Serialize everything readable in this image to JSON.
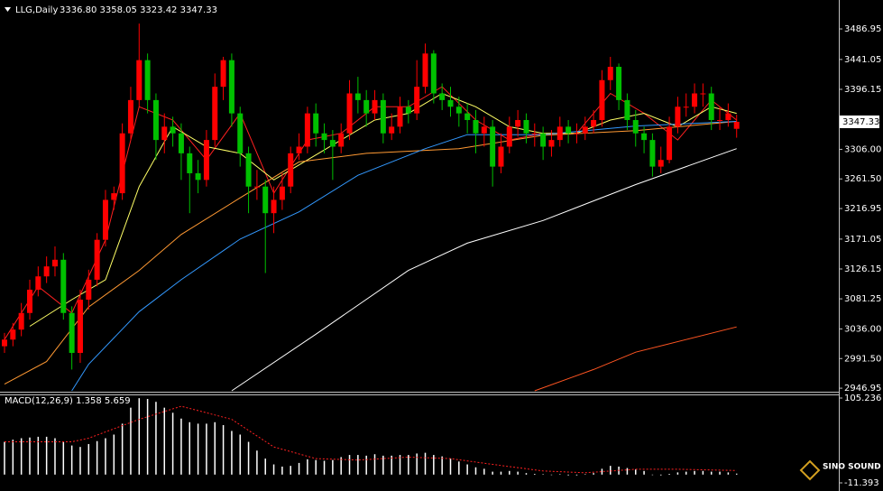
{
  "chart_data": [
    {
      "type": "candlestick",
      "symbol": "LLG,Daily",
      "ohlc_text": "3336.80 3358.05 3323.42 3347.33",
      "bull_color": "#ff0000",
      "bear_color": "#00c000",
      "ylim": [
        2943,
        3525
      ],
      "yticks": [
        3486.95,
        3441.05,
        3396.15,
        {
          "value": 3306.0,
          "label": "3306.00"
        },
        {
          "value": 3261.5,
          "label": "3261.50"
        },
        3216.95,
        3171.05,
        3126.15,
        3081.25,
        {
          "value": 3036.0,
          "label": "3036.00"
        },
        {
          "value": 2991.5,
          "label": "2991.50"
        },
        2946.95
      ],
      "open": [
        3010,
        3020,
        3035,
        3060,
        3095,
        3115,
        3130,
        3140,
        3060,
        3000,
        3080,
        3110,
        3170,
        3230,
        3240,
        3330,
        3380,
        3440,
        3380,
        3320,
        3340,
        3330,
        3300,
        3270,
        3260,
        3320,
        3400,
        3440,
        3360,
        3300,
        3250,
        3250,
        3210,
        3230,
        3250,
        3300,
        3310,
        3360,
        3330,
        3320,
        3310,
        3330,
        3390,
        3380,
        3360,
        3380,
        3330,
        3340,
        3370,
        3360,
        3400,
        3450,
        3390,
        3380,
        3370,
        3360,
        3350,
        3330,
        3340,
        3280,
        3310,
        3340,
        3350,
        3330,
        3330,
        3310,
        3320,
        3340,
        3330,
        3330,
        3340,
        3350,
        3410,
        3430,
        3380,
        3350,
        3330,
        3320,
        3280,
        3290,
        3340,
        3370,
        3370,
        3390,
        3390,
        3350,
        3350,
        3336.8
      ],
      "high": [
        3030,
        3045,
        3075,
        3110,
        3130,
        3145,
        3160,
        3150,
        3070,
        3095,
        3125,
        3180,
        3245,
        3250,
        3345,
        3400,
        3495,
        3450,
        3390,
        3360,
        3355,
        3345,
        3310,
        3290,
        3335,
        3420,
        3445,
        3450,
        3370,
        3310,
        3275,
        3260,
        3250,
        3270,
        3310,
        3330,
        3370,
        3375,
        3345,
        3335,
        3345,
        3410,
        3415,
        3395,
        3395,
        3390,
        3360,
        3385,
        3380,
        3440,
        3465,
        3455,
        3405,
        3400,
        3385,
        3375,
        3365,
        3355,
        3350,
        3330,
        3355,
        3365,
        3360,
        3345,
        3340,
        3335,
        3355,
        3350,
        3345,
        3355,
        3365,
        3425,
        3445,
        3435,
        3390,
        3365,
        3340,
        3330,
        3310,
        3355,
        3385,
        3390,
        3405,
        3405,
        3400,
        3370,
        3375,
        3358.05
      ],
      "low": [
        3000,
        3010,
        3025,
        3050,
        3085,
        3105,
        3115,
        3050,
        2975,
        2985,
        3065,
        3100,
        3160,
        3215,
        3230,
        3320,
        3370,
        3360,
        3290,
        3300,
        3310,
        3260,
        3210,
        3240,
        3250,
        3310,
        3380,
        3340,
        3280,
        3210,
        3230,
        3120,
        3180,
        3215,
        3240,
        3290,
        3300,
        3310,
        3300,
        3260,
        3300,
        3320,
        3360,
        3340,
        3350,
        3315,
        3320,
        3330,
        3345,
        3350,
        3390,
        3375,
        3365,
        3355,
        3340,
        3330,
        3300,
        3310,
        3250,
        3270,
        3300,
        3325,
        3315,
        3310,
        3290,
        3295,
        3310,
        3315,
        3315,
        3320,
        3330,
        3340,
        3395,
        3365,
        3335,
        3310,
        3300,
        3265,
        3270,
        3285,
        3330,
        3355,
        3360,
        3370,
        3335,
        3335,
        3340,
        3323.42
      ],
      "close": [
        3020,
        3035,
        3060,
        3095,
        3115,
        3130,
        3140,
        3060,
        3000,
        3080,
        3110,
        3170,
        3230,
        3240,
        3330,
        3380,
        3440,
        3380,
        3320,
        3340,
        3330,
        3300,
        3270,
        3260,
        3320,
        3400,
        3440,
        3360,
        3300,
        3250,
        3250,
        3210,
        3230,
        3250,
        3300,
        3310,
        3360,
        3330,
        3320,
        3310,
        3330,
        3390,
        3380,
        3360,
        3380,
        3330,
        3340,
        3370,
        3360,
        3400,
        3450,
        3390,
        3380,
        3370,
        3360,
        3350,
        3330,
        3340,
        3280,
        3310,
        3340,
        3350,
        3330,
        3330,
        3310,
        3320,
        3340,
        3330,
        3330,
        3340,
        3350,
        3410,
        3430,
        3380,
        3350,
        3330,
        3320,
        3280,
        3290,
        3340,
        3370,
        3370,
        3390,
        3390,
        3350,
        3350,
        3360,
        3347.33
      ],
      "lines": [
        {
          "color": "#ff2020",
          "x": [
            0,
            4,
            8,
            12,
            16,
            20,
            24,
            28,
            32,
            36,
            40,
            44,
            48,
            52,
            56,
            60,
            64,
            68,
            72,
            76,
            80,
            84,
            87
          ],
          "values": [
            3020,
            3100,
            3060,
            3170,
            3370,
            3350,
            3290,
            3360,
            3240,
            3320,
            3330,
            3370,
            3370,
            3400,
            3350,
            3320,
            3330,
            3330,
            3390,
            3360,
            3320,
            3380,
            3350
          ]
        },
        {
          "color": "#ffff66",
          "x": [
            3,
            8,
            12,
            16,
            20,
            24,
            28,
            32,
            36,
            40,
            44,
            48,
            52,
            56,
            60,
            64,
            68,
            72,
            76,
            80,
            84,
            87
          ],
          "values": [
            3040,
            3080,
            3110,
            3250,
            3340,
            3310,
            3300,
            3260,
            3290,
            3320,
            3350,
            3360,
            3390,
            3370,
            3340,
            3330,
            3330,
            3350,
            3360,
            3340,
            3370,
            3360
          ]
        },
        {
          "color": "#ff9933",
          "x": [
            0,
            5,
            10,
            16,
            21,
            28,
            35,
            43,
            54,
            64,
            75,
            87
          ],
          "values": [
            2953,
            2987,
            3069,
            3124,
            3178,
            3233,
            3287,
            3300,
            3307,
            3327,
            3334,
            3348
          ]
        },
        {
          "color": "#3399ff",
          "x": [
            8,
            10,
            16,
            21,
            28,
            35,
            42,
            50,
            55,
            64,
            75,
            87
          ],
          "values": [
            2943,
            2983,
            3062,
            3110,
            3171,
            3212,
            3267,
            3307,
            3328,
            3328,
            3341,
            3348
          ]
        },
        {
          "color": "#ffffff",
          "x": [
            27,
            37,
            48,
            55,
            64,
            75,
            87
          ],
          "values": [
            2943,
            3028,
            3124,
            3165,
            3199,
            3253,
            3307
          ]
        },
        {
          "color": "#ff5522",
          "x": [
            63,
            70,
            75,
            81,
            87
          ],
          "values": [
            2943,
            2975,
            3001,
            3020,
            3039
          ]
        }
      ]
    },
    {
      "type": "macd",
      "title": "MACD(12,26,9) 1.358 5.659",
      "color": "#ffffff",
      "ylim": [
        -11.393,
        105.236
      ],
      "yticks": [
        105.236,
        -11.393
      ],
      "values": [
        45,
        48,
        50,
        51,
        52,
        52,
        50,
        45,
        40,
        38,
        42,
        46,
        50,
        55,
        70,
        92,
        105,
        104,
        100,
        92,
        85,
        77,
        72,
        70,
        70,
        72,
        68,
        60,
        55,
        45,
        33,
        22,
        14,
        11,
        12,
        16,
        21,
        20,
        19,
        20,
        24,
        27,
        27,
        26,
        28,
        26,
        26,
        27,
        27,
        29,
        30,
        27,
        25,
        22,
        18,
        14,
        10,
        8,
        4,
        4,
        5,
        4,
        2,
        1,
        0.5,
        -0.5,
        0.5,
        -1,
        -1,
        0.5,
        2,
        8,
        12,
        11,
        9,
        7,
        5,
        0,
        -1,
        1,
        3,
        4,
        5,
        5,
        4,
        4,
        3,
        1.358
      ],
      "signal": {
        "color": "#ff2020",
        "x": [
          0,
          8,
          10,
          16,
          21,
          27,
          32,
          37,
          42,
          48,
          53,
          58,
          64,
          69,
          75,
          80,
          87
        ],
        "values": [
          45,
          45,
          50,
          76,
          94,
          76,
          38,
          22,
          20,
          24,
          22,
          14,
          5,
          2.5,
          7.4,
          7.4,
          5.659
        ]
      }
    }
  ],
  "logo": "SINO SOUND"
}
